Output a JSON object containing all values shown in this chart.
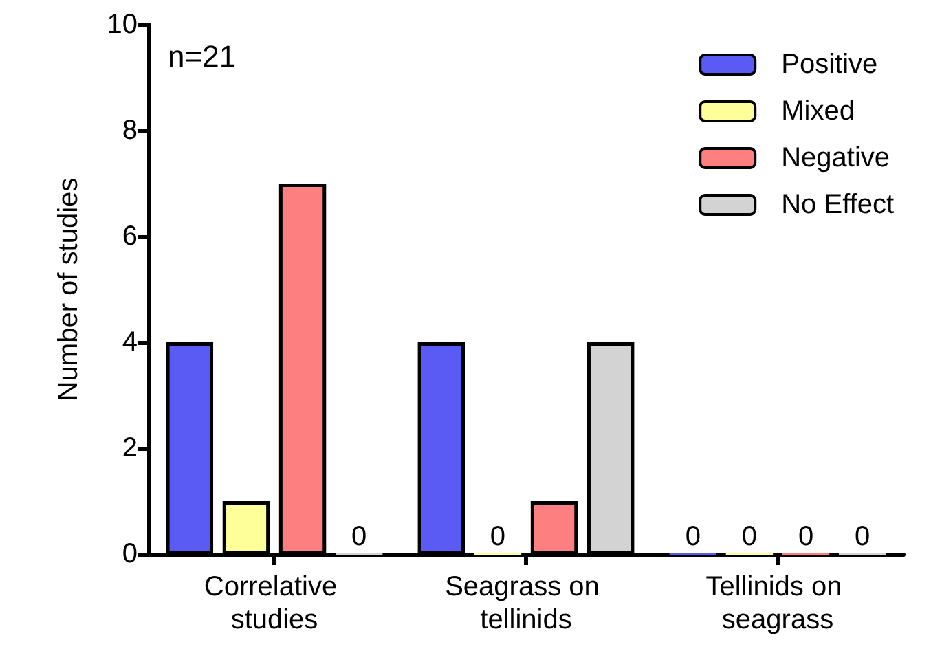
{
  "chart_data": {
    "type": "bar",
    "categories": [
      "Correlative studies",
      "Seagrass on tellinids",
      "Tellinids on seagrass"
    ],
    "series": [
      {
        "name": "Positive",
        "color": "#5a5af5",
        "values": [
          4,
          4,
          0
        ],
        "value_labels": [
          null,
          null,
          "0"
        ]
      },
      {
        "name": "Mixed",
        "color": "#ffff99",
        "values": [
          1,
          0,
          0
        ],
        "value_labels": [
          null,
          "0",
          "0"
        ]
      },
      {
        "name": "Negative",
        "color": "#fe7f7f",
        "values": [
          7,
          1,
          0
        ],
        "value_labels": [
          null,
          null,
          "0"
        ]
      },
      {
        "name": "No Effect",
        "color": "#d3d3d3",
        "values": [
          0,
          4,
          0
        ],
        "value_labels": [
          "0",
          null,
          "0"
        ]
      }
    ],
    "ylabel": "Number of studies",
    "ylim": [
      0,
      10
    ],
    "yticks": [
      0,
      2,
      4,
      6,
      8,
      10
    ],
    "annotations": [
      "n=21"
    ],
    "legend": "top right",
    "grid": false
  }
}
